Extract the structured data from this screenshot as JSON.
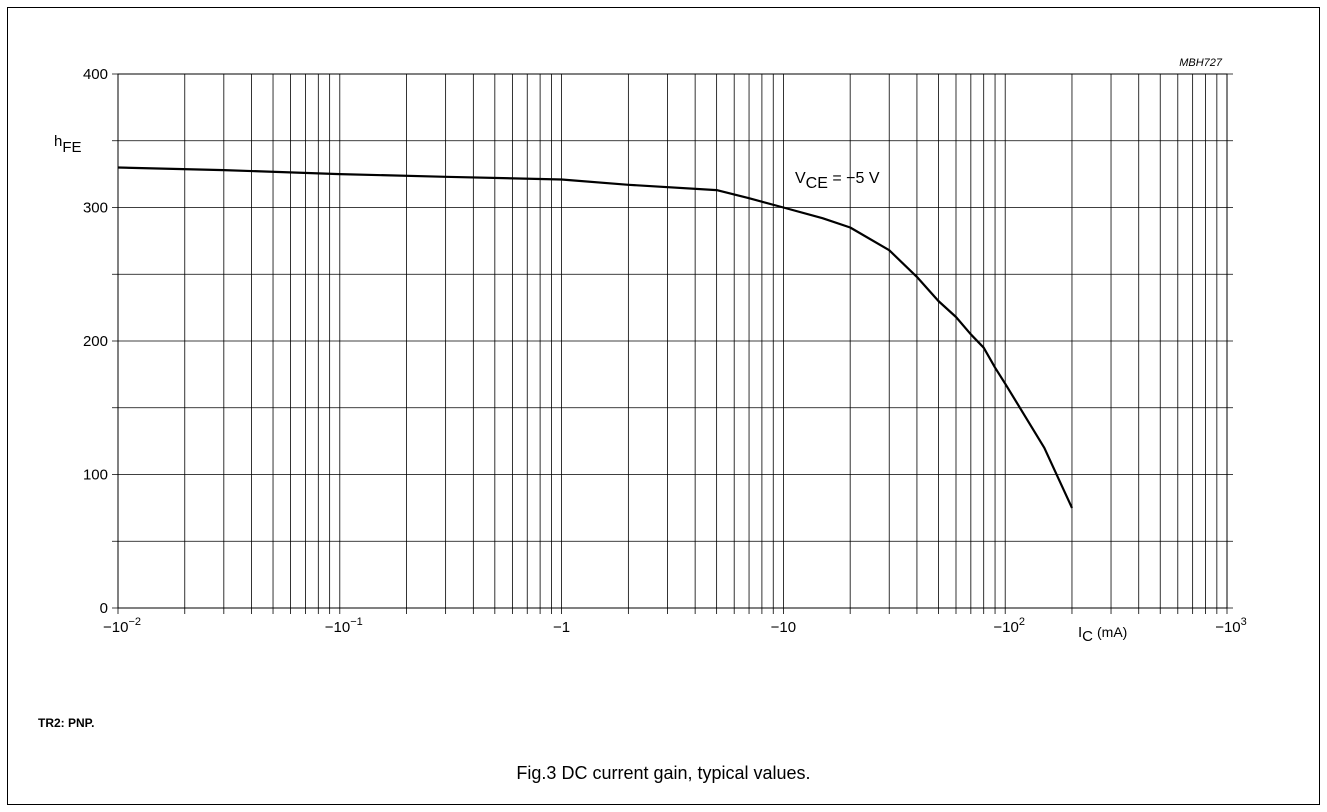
{
  "figure": {
    "code": "MBH727",
    "note": "TR2: PNP.",
    "caption": "Fig.3  DC current gain, typical values."
  },
  "chart_data": {
    "type": "line",
    "x_scale": "log",
    "x_label_main": "I",
    "x_label_sub": "C",
    "x_label_unit": "(mA)",
    "y_label_main": "h",
    "y_label_sub": "FE",
    "ylim": [
      0,
      400
    ],
    "y_ticks": [
      0,
      100,
      200,
      300,
      400
    ],
    "y_minor_grid": [
      50,
      150,
      250,
      350
    ],
    "xlim": [
      -0.01,
      -1000
    ],
    "x_ticks": [
      {
        "value": -0.01,
        "base": "−10",
        "exp": "−2"
      },
      {
        "value": -0.1,
        "base": "−10",
        "exp": "−1"
      },
      {
        "value": -1,
        "base": "−1",
        "exp": ""
      },
      {
        "value": -10,
        "base": "−10",
        "exp": ""
      },
      {
        "value": -100,
        "base": "−10",
        "exp": "2"
      },
      {
        "value": -1000,
        "base": "−10",
        "exp": "3"
      }
    ],
    "grid": true,
    "series": [
      {
        "label_main": "V",
        "label_sub": "CE",
        "label_rest": " = −5 V",
        "x": [
          -0.01,
          -0.03,
          -0.1,
          -0.3,
          -1,
          -2,
          -5,
          -7,
          -10,
          -15,
          -20,
          -30,
          -40,
          -50,
          -60,
          -70,
          -80,
          -90,
          -100,
          -150,
          -200
        ],
        "y": [
          330,
          328,
          325,
          323,
          321,
          317,
          313,
          307,
          300,
          292,
          285,
          268,
          248,
          230,
          218,
          205,
          195,
          180,
          168,
          120,
          75
        ]
      }
    ]
  }
}
